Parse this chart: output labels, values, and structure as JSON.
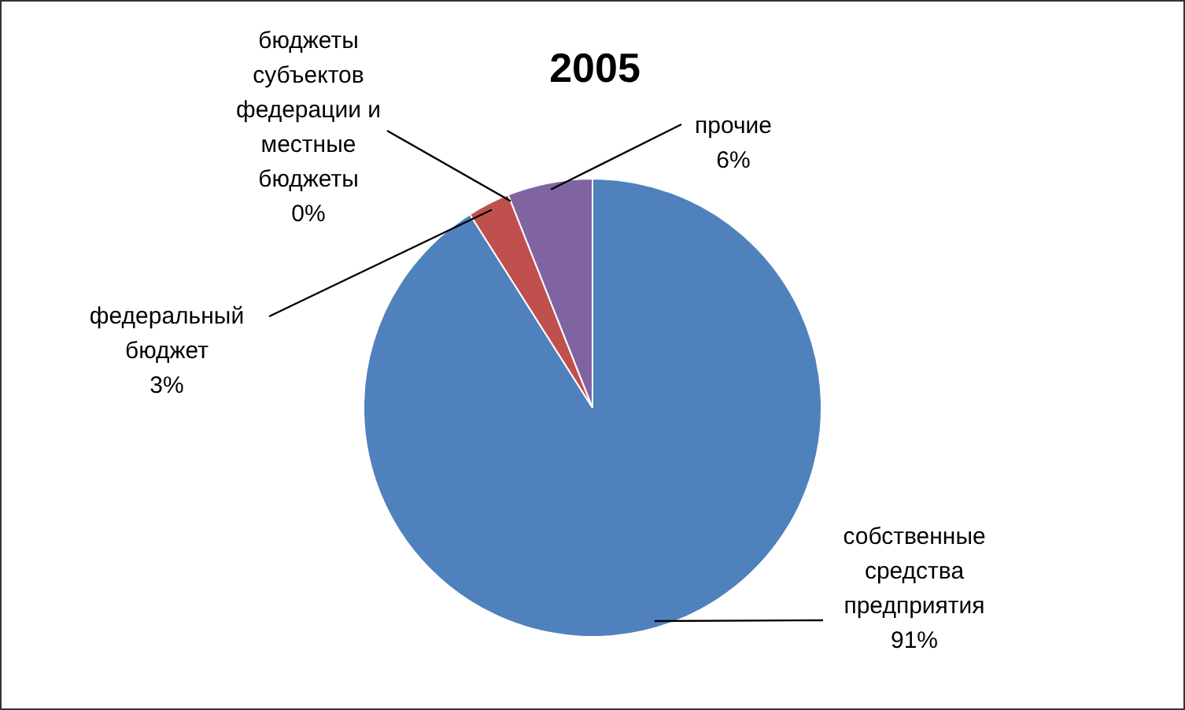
{
  "chart_data": {
    "type": "pie",
    "title": "2005",
    "categories": [
      "собственные средства предприятия",
      "федеральный бюджет",
      "бюджеты субъектов федерации и местные бюджеты",
      "прочие"
    ],
    "values": [
      91,
      3,
      0,
      6
    ],
    "colors": [
      "#4f81bd",
      "#c0504d",
      "#9bbb59",
      "#8064a2"
    ],
    "value_labels": [
      "91%",
      "3%",
      "0%",
      "6%"
    ],
    "legend": false
  }
}
